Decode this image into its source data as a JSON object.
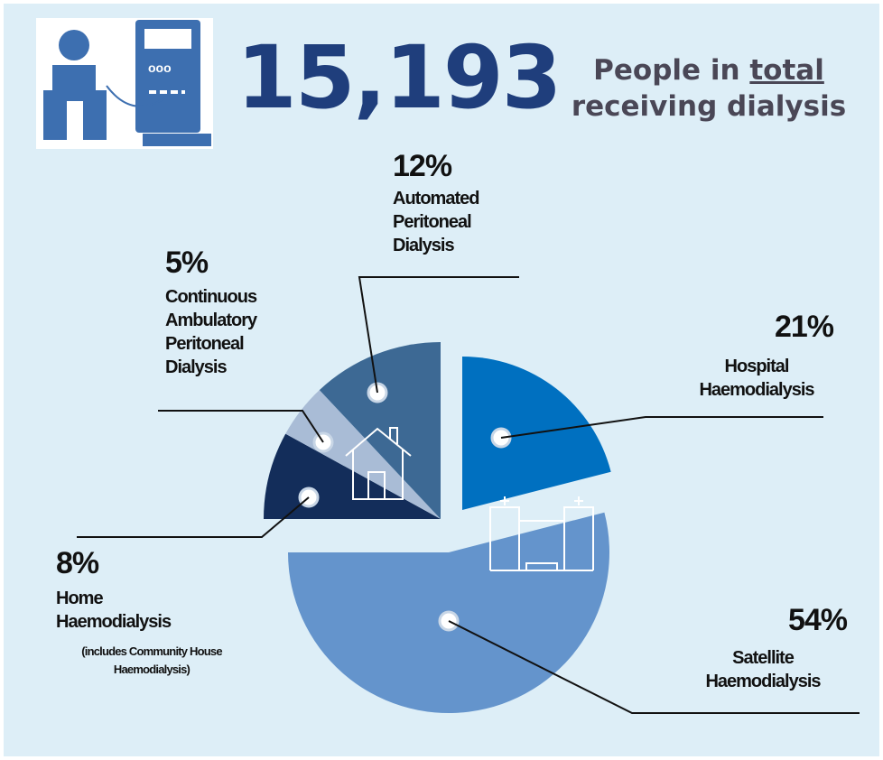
{
  "chart_data": {
    "type": "pie",
    "title": "15,193",
    "subtitle_parts": [
      "People in",
      "total",
      "receiving dialysis"
    ],
    "categories": [
      "Hospital Haemodialysis",
      "Satellite Haemodialysis",
      "Home Haemodialysis",
      "Continuous Ambulatory Peritoneal Dialysis",
      "Automated Peritoneal Dialysis"
    ],
    "values": [
      21,
      54,
      8,
      5,
      12
    ],
    "value_labels": [
      "21%",
      "54%",
      "8%",
      "5%",
      "12%"
    ],
    "colors": [
      "#0070c0",
      "#6494cc",
      "#132d5a",
      "#a9bcd6",
      "#3d6994"
    ],
    "annotations": [
      "(includes Community House Haemodialysis)"
    ]
  }
}
